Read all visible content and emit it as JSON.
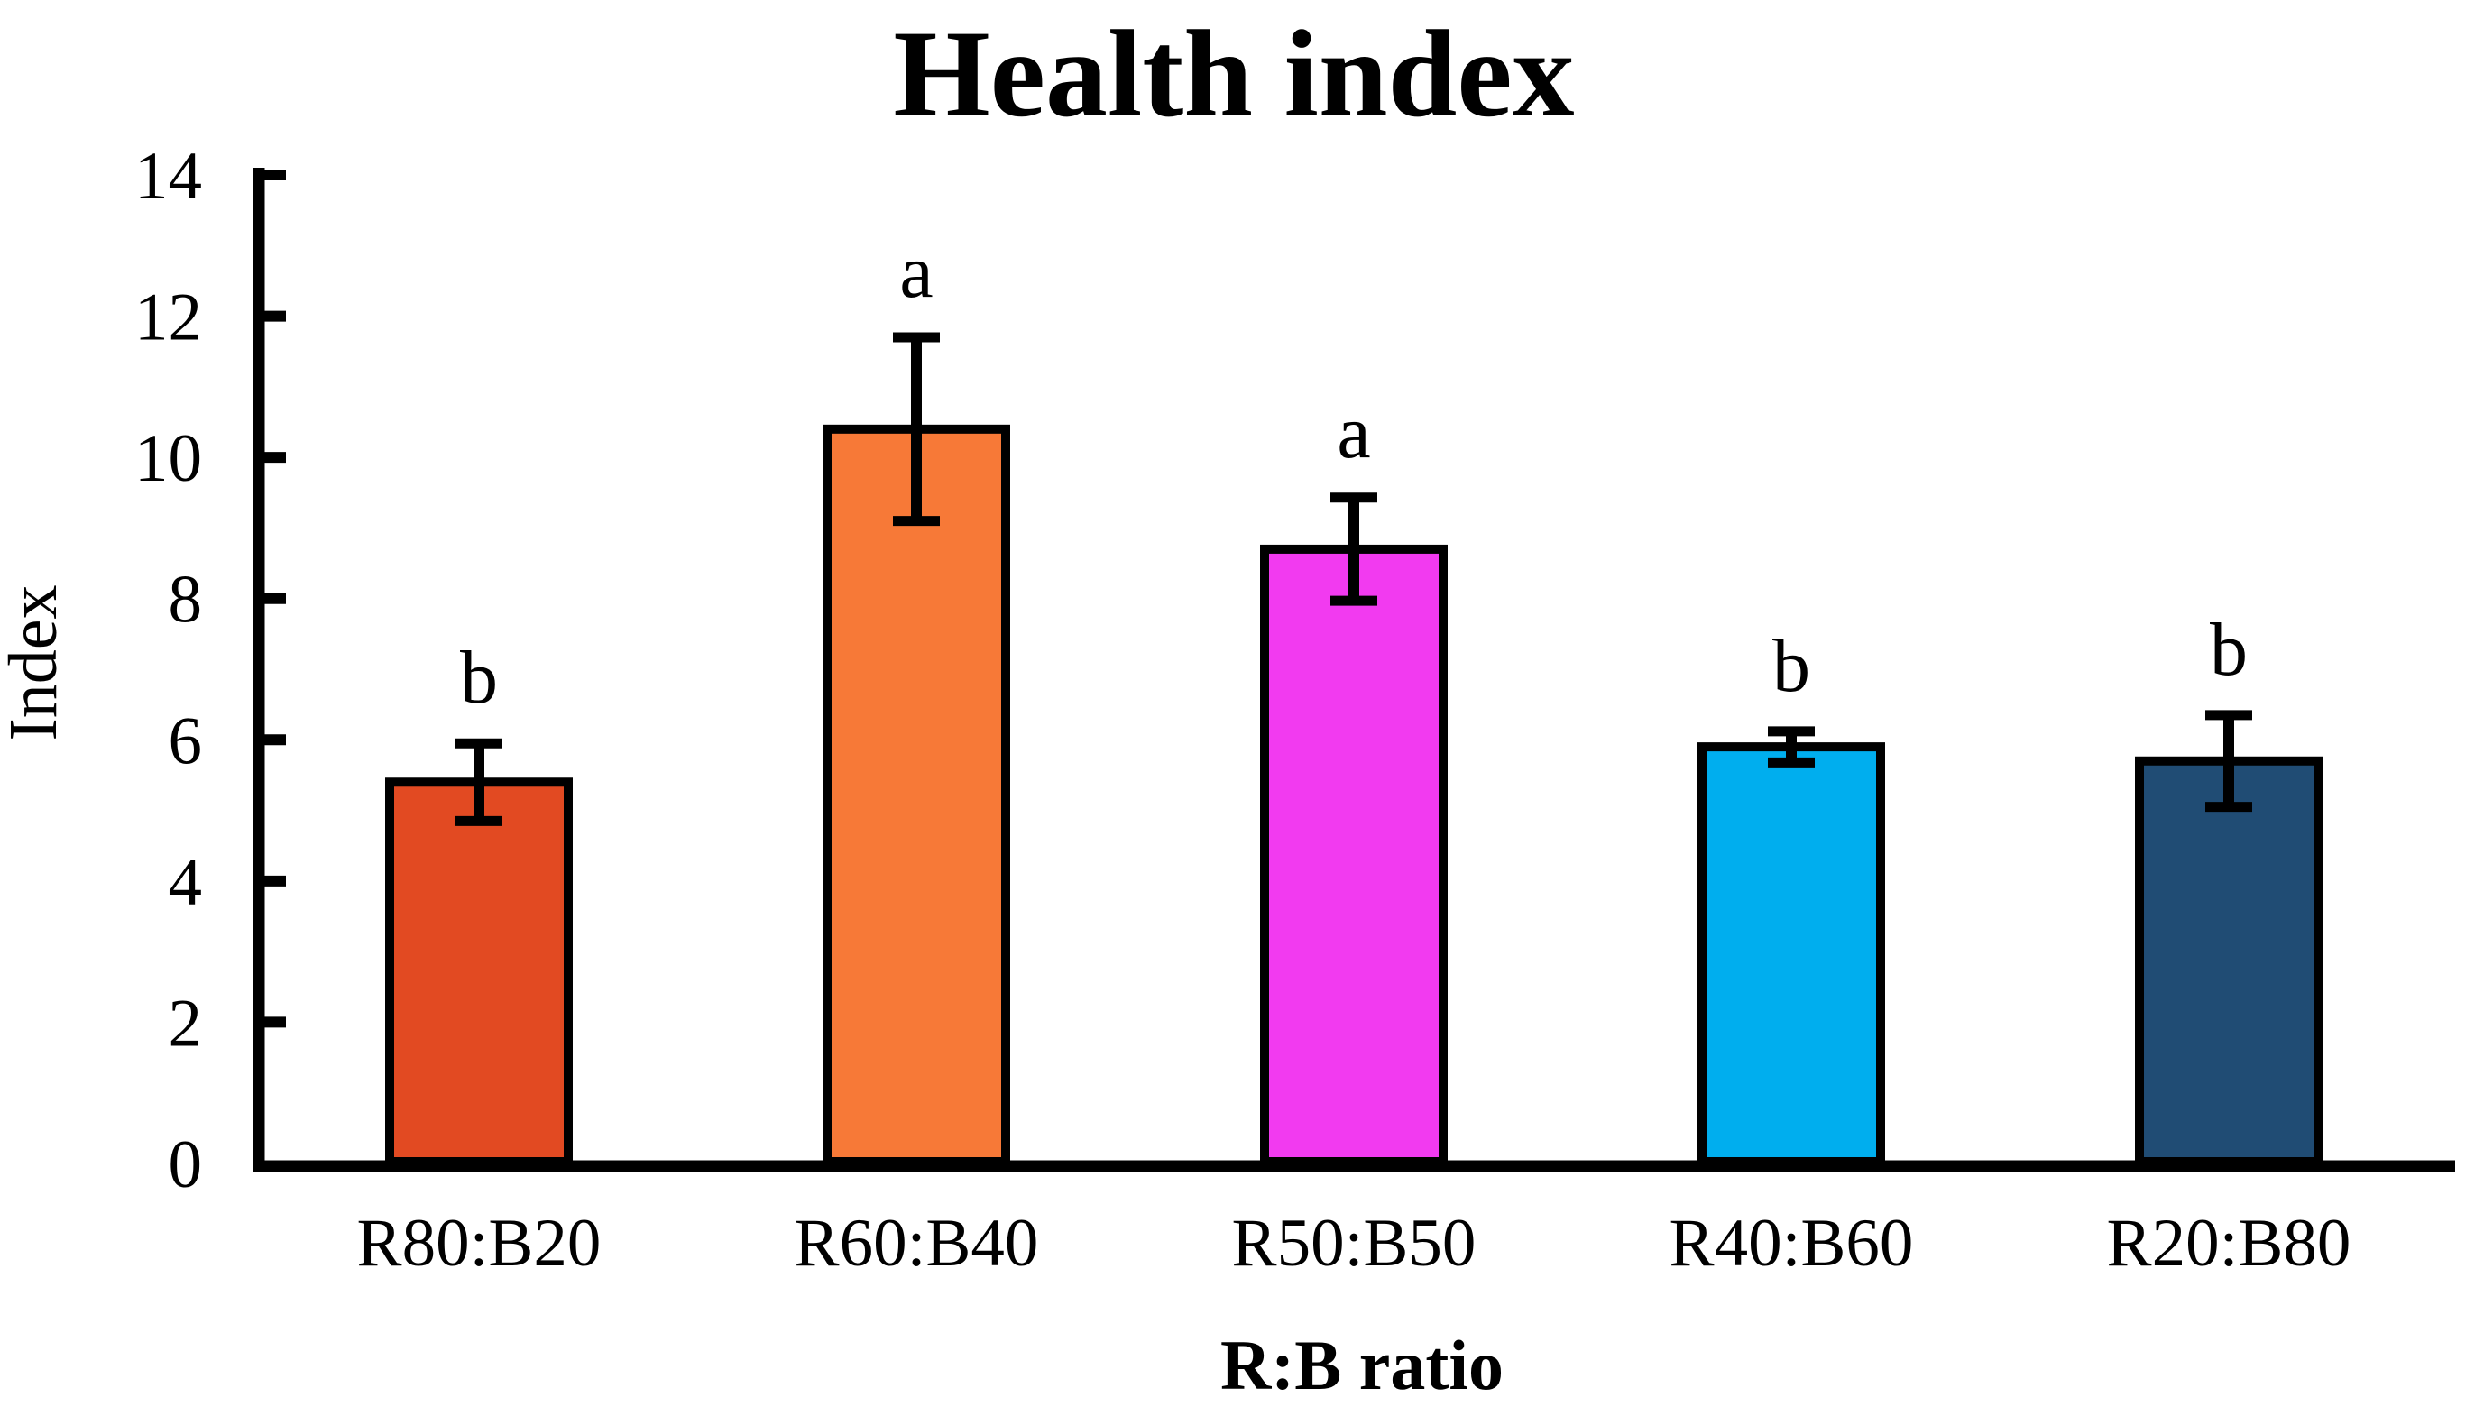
{
  "chart_data": {
    "type": "bar",
    "title": "Health index",
    "xlabel": "R:B ratio",
    "ylabel": "Index",
    "ylim": [
      0,
      14
    ],
    "yticks": [
      0,
      2,
      4,
      6,
      8,
      10,
      12,
      14
    ],
    "grid": false,
    "legend_position": "none",
    "background": "#ffffff",
    "axis_color": "#000000",
    "categories": [
      "R80:B20",
      "R60:B40",
      "R50:B50",
      "R40:B60",
      "R20:B80"
    ],
    "values": [
      5.4,
      10.4,
      8.7,
      5.9,
      5.7
    ],
    "errors": [
      0.55,
      1.3,
      0.73,
      0.22,
      0.65
    ],
    "sig_letters": [
      "b",
      "a",
      "a",
      "b",
      "b"
    ],
    "bar_colors": [
      "#e24a22",
      "#f77937",
      "#f23af0",
      "#00aeee",
      "#204c74"
    ],
    "bar_edge_color": "#000000"
  }
}
